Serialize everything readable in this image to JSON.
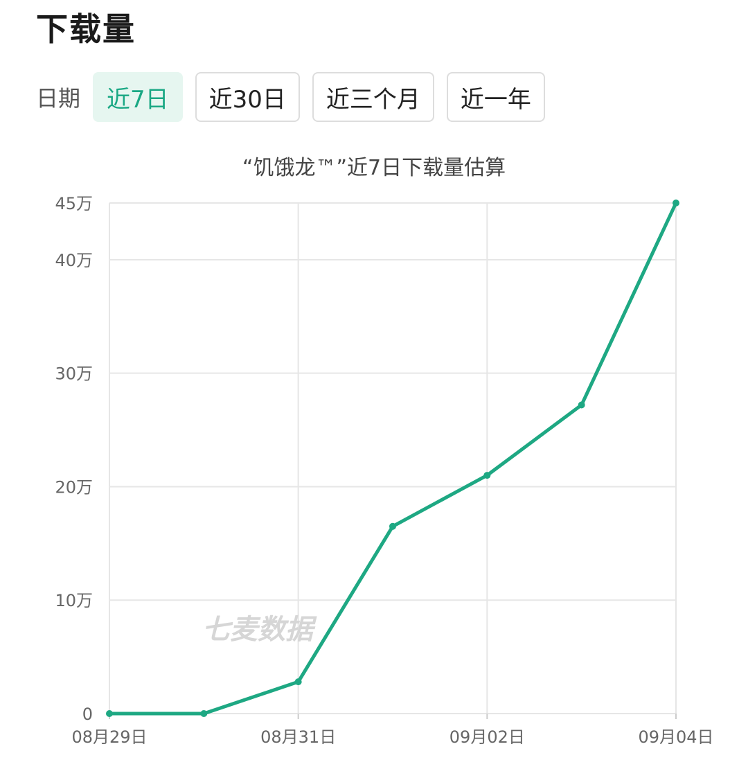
{
  "header": {
    "title": "下载量"
  },
  "filters": {
    "label": "日期",
    "ranges": [
      {
        "label": "近7日",
        "active": true
      },
      {
        "label": "近30日",
        "active": false
      },
      {
        "label": "近三个月",
        "active": false
      },
      {
        "label": "近一年",
        "active": false
      }
    ]
  },
  "watermark": "七麦数据",
  "colors": {
    "line": "#1ea883",
    "grid": "#e6e6e6",
    "axis_text": "#666666",
    "active_bg": "#e6f6f0",
    "active_text": "#1aa884"
  },
  "chart_data": {
    "type": "line",
    "title": "“饥饿龙™”近7日下载量估算",
    "x": [
      "08月29日",
      "08月30日",
      "08月31日",
      "09月01日",
      "09月02日",
      "09月03日",
      "09月04日"
    ],
    "x_tick_labels": [
      "08月29日",
      "08月31日",
      "09月02日",
      "09月04日"
    ],
    "y_tick_values": [
      0,
      100000,
      200000,
      300000,
      400000,
      450000
    ],
    "y_tick_labels": [
      "0",
      "10万",
      "20万",
      "30万",
      "40万",
      "45万"
    ],
    "ylim": [
      0,
      450000
    ],
    "grid": true,
    "series": [
      {
        "values": [
          0,
          0,
          28000,
          165000,
          210000,
          272000,
          450000
        ]
      }
    ]
  }
}
